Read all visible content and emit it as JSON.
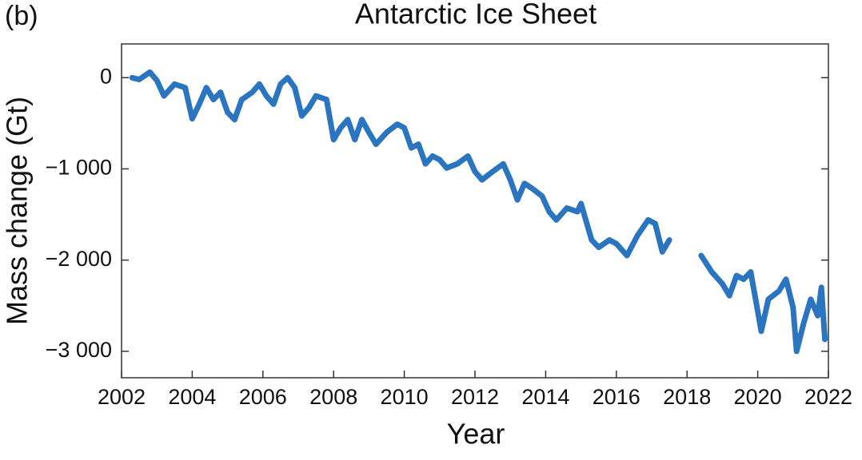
{
  "chart_data": {
    "type": "line",
    "panel_label": "(b)",
    "title": "Antarctic Ice Sheet",
    "xlabel": "Year",
    "ylabel": "Mass change (Gt)",
    "x": [
      2002.3,
      2002.5,
      2002.8,
      2003.0,
      2003.2,
      2003.5,
      2003.8,
      2004.0,
      2004.2,
      2004.4,
      2004.6,
      2004.8,
      2005.0,
      2005.2,
      2005.4,
      2005.7,
      2005.9,
      2006.1,
      2006.3,
      2006.5,
      2006.7,
      2006.9,
      2007.1,
      2007.3,
      2007.5,
      2007.8,
      2008.0,
      2008.2,
      2008.4,
      2008.6,
      2008.8,
      2009.0,
      2009.2,
      2009.5,
      2009.8,
      2010.0,
      2010.2,
      2010.4,
      2010.6,
      2010.8,
      2011.0,
      2011.2,
      2011.5,
      2011.8,
      2012.0,
      2012.2,
      2012.5,
      2012.8,
      2013.0,
      2013.2,
      2013.4,
      2013.6,
      2013.9,
      2014.1,
      2014.3,
      2014.6,
      2014.9,
      2015.0,
      2015.3,
      2015.5,
      2015.8,
      2016.0,
      2016.3,
      2016.6,
      2016.9,
      2017.1,
      2017.3,
      2017.5,
      2018.0,
      2018.4,
      2018.7,
      2019.0,
      2019.2,
      2019.4,
      2019.6,
      2019.8,
      2020.0,
      2020.1,
      2020.3,
      2020.6,
      2020.8,
      2021.0,
      2021.1,
      2021.3,
      2021.5,
      2021.7,
      2021.8,
      2021.9
    ],
    "series": [
      {
        "color": "#2a74c0",
        "values": [
          0,
          -20,
          60,
          -30,
          -200,
          -70,
          -110,
          -450,
          -290,
          -110,
          -240,
          -160,
          -380,
          -460,
          -240,
          -160,
          -70,
          -200,
          -290,
          -70,
          0,
          -110,
          -420,
          -330,
          -200,
          -240,
          -680,
          -550,
          -460,
          -680,
          -460,
          -600,
          -730,
          -600,
          -510,
          -550,
          -770,
          -730,
          -945,
          -860,
          -900,
          -990,
          -945,
          -860,
          -1030,
          -1120,
          -1030,
          -945,
          -1120,
          -1340,
          -1160,
          -1210,
          -1300,
          -1470,
          -1560,
          -1430,
          -1470,
          -1380,
          -1780,
          -1860,
          -1780,
          -1820,
          -1950,
          -1730,
          -1560,
          -1600,
          -1910,
          -1780,
          null,
          -1950,
          -2130,
          -2260,
          -2390,
          -2170,
          -2210,
          -2130,
          -2560,
          -2780,
          -2430,
          -2340,
          -2210,
          -2520,
          -3000,
          -2690,
          -2430,
          -2610,
          -2300,
          -2870
        ]
      }
    ],
    "xlim": [
      2002,
      2022
    ],
    "xticks": [
      2002,
      2004,
      2006,
      2008,
      2010,
      2012,
      2014,
      2016,
      2018,
      2020,
      2022
    ],
    "ylim": [
      -3290,
      370
    ],
    "yticks": [
      0,
      {
        "value": -1000,
        "label": "−1 000"
      },
      {
        "value": -2000,
        "label": "−2 000"
      },
      {
        "value": -3000,
        "label": "−3 000"
      }
    ]
  }
}
